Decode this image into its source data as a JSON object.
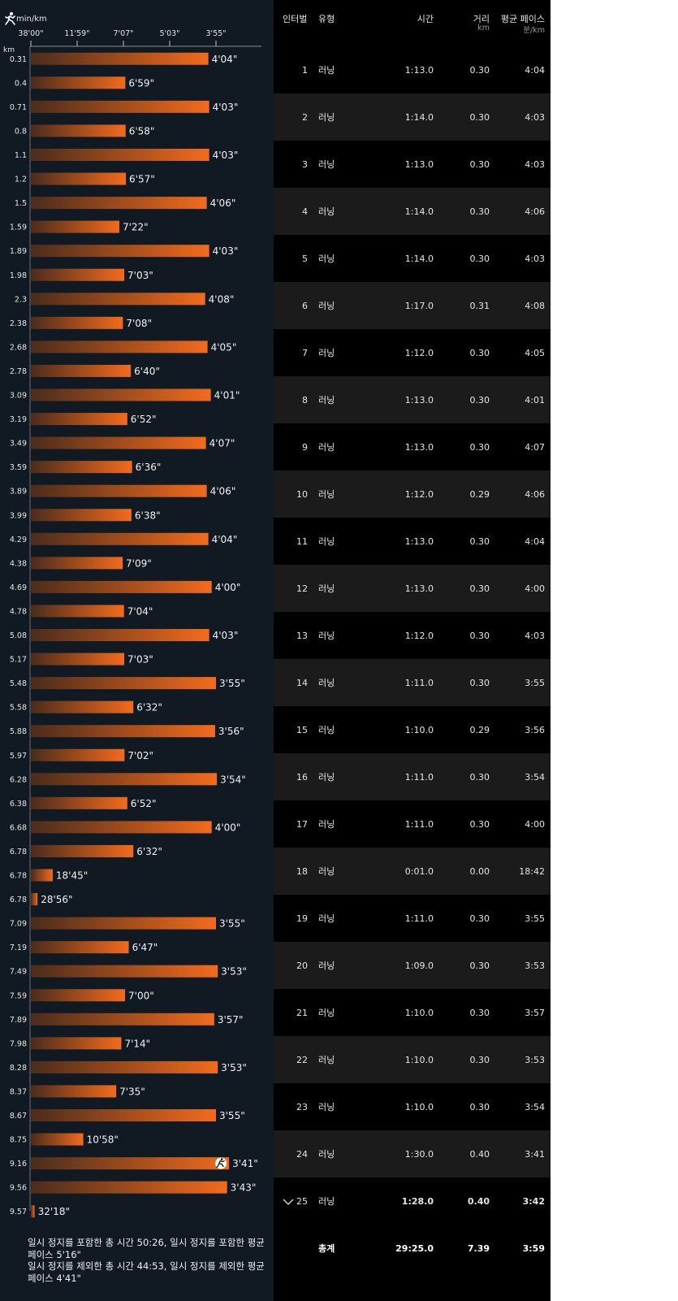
{
  "chart_data": {
    "type": "bar",
    "orientation": "horizontal",
    "unit_label": "min/km",
    "category_axis_label": "km",
    "x_ticks": [
      "38'00\"",
      "11'59\"",
      "7'07\"",
      "5'03\"",
      "3'55\""
    ],
    "categories": [
      "0.31",
      "0.4",
      "0.71",
      "0.8",
      "1.1",
      "1.2",
      "1.5",
      "1.59",
      "1.89",
      "1.98",
      "2.3",
      "2.38",
      "2.68",
      "2.78",
      "3.09",
      "3.19",
      "3.49",
      "3.59",
      "3.89",
      "3.99",
      "4.29",
      "4.38",
      "4.69",
      "4.78",
      "5.08",
      "5.17",
      "5.48",
      "5.58",
      "5.88",
      "5.97",
      "6.28",
      "6.38",
      "6.68",
      "6.78",
      "6.78",
      "6.78",
      "7.09",
      "7.19",
      "7.49",
      "7.59",
      "7.89",
      "7.98",
      "8.28",
      "8.37",
      "8.67",
      "8.75",
      "9.16",
      "9.56",
      "9.57"
    ],
    "labels": [
      "4'04\"",
      "6'59\"",
      "4'03\"",
      "6'58\"",
      "4'03\"",
      "6'57\"",
      "4'06\"",
      "7'22\"",
      "4'03\"",
      "7'03\"",
      "4'08\"",
      "7'08\"",
      "4'05\"",
      "6'40\"",
      "4'01\"",
      "6'52\"",
      "4'07\"",
      "6'36\"",
      "4'06\"",
      "6'38\"",
      "4'04\"",
      "7'09\"",
      "4'00\"",
      "7'04\"",
      "4'03\"",
      "7'03\"",
      "3'55\"",
      "6'32\"",
      "3'56\"",
      "7'02\"",
      "3'54\"",
      "6'52\"",
      "4'00\"",
      "6'32\"",
      "18'45\"",
      "28'56\"",
      "3'55\"",
      "6'47\"",
      "3'53\"",
      "7'00\"",
      "3'57\"",
      "7'14\"",
      "3'53\"",
      "7'35\"",
      "3'55\"",
      "10'58\"",
      "3'41\"",
      "3'43\"",
      "32'18\""
    ],
    "values_sec_per_km": [
      244,
      419,
      243,
      418,
      243,
      417,
      246,
      442,
      243,
      423,
      248,
      428,
      245,
      400,
      241,
      412,
      247,
      396,
      246,
      398,
      244,
      429,
      240,
      424,
      243,
      423,
      235,
      392,
      236,
      422,
      234,
      412,
      240,
      392,
      1125,
      1736,
      235,
      407,
      233,
      420,
      237,
      434,
      233,
      455,
      235,
      658,
      221,
      223,
      1938
    ],
    "highlight_index": 46
  },
  "icons": {
    "unit": "runner-icon",
    "highlight": "runner-badge-icon",
    "expand": "chevron-down-icon"
  },
  "notes": {
    "line1": "일시 정지를 포함한 총 시간 50:26, 일시 정지를 포함한 평균 페이스 5'16\"",
    "line2": "일시 정지를 제외한 총 시간 44:53, 일시 정지를 제외한 평균 페이스 4'41\""
  },
  "table": {
    "headers": {
      "interval": "인터벌",
      "type": "유형",
      "time": "시간",
      "distance": "거리",
      "distance_unit": "km",
      "pace": "평균 페이스",
      "pace_unit": "분/km"
    },
    "rows": [
      {
        "interval": "1",
        "type": "러닝",
        "time": "1:13.0",
        "distance": "0.30",
        "pace": "4:04"
      },
      {
        "interval": "2",
        "type": "러닝",
        "time": "1:14.0",
        "distance": "0.30",
        "pace": "4:03"
      },
      {
        "interval": "3",
        "type": "러닝",
        "time": "1:13.0",
        "distance": "0.30",
        "pace": "4:03"
      },
      {
        "interval": "4",
        "type": "러닝",
        "time": "1:14.0",
        "distance": "0.30",
        "pace": "4:06"
      },
      {
        "interval": "5",
        "type": "러닝",
        "time": "1:14.0",
        "distance": "0.30",
        "pace": "4:03"
      },
      {
        "interval": "6",
        "type": "러닝",
        "time": "1:17.0",
        "distance": "0.31",
        "pace": "4:08"
      },
      {
        "interval": "7",
        "type": "러닝",
        "time": "1:12.0",
        "distance": "0.30",
        "pace": "4:05"
      },
      {
        "interval": "8",
        "type": "러닝",
        "time": "1:13.0",
        "distance": "0.30",
        "pace": "4:01"
      },
      {
        "interval": "9",
        "type": "러닝",
        "time": "1:13.0",
        "distance": "0.30",
        "pace": "4:07"
      },
      {
        "interval": "10",
        "type": "러닝",
        "time": "1:12.0",
        "distance": "0.29",
        "pace": "4:06"
      },
      {
        "interval": "11",
        "type": "러닝",
        "time": "1:13.0",
        "distance": "0.30",
        "pace": "4:04"
      },
      {
        "interval": "12",
        "type": "러닝",
        "time": "1:13.0",
        "distance": "0.30",
        "pace": "4:00"
      },
      {
        "interval": "13",
        "type": "러닝",
        "time": "1:12.0",
        "distance": "0.30",
        "pace": "4:03"
      },
      {
        "interval": "14",
        "type": "러닝",
        "time": "1:11.0",
        "distance": "0.30",
        "pace": "3:55"
      },
      {
        "interval": "15",
        "type": "러닝",
        "time": "1:10.0",
        "distance": "0.29",
        "pace": "3:56"
      },
      {
        "interval": "16",
        "type": "러닝",
        "time": "1:11.0",
        "distance": "0.30",
        "pace": "3:54"
      },
      {
        "interval": "17",
        "type": "러닝",
        "time": "1:11.0",
        "distance": "0.30",
        "pace": "4:00"
      },
      {
        "interval": "18",
        "type": "러닝",
        "time": "0:01.0",
        "distance": "0.00",
        "pace": "18:42"
      },
      {
        "interval": "19",
        "type": "러닝",
        "time": "1:11.0",
        "distance": "0.30",
        "pace": "3:55"
      },
      {
        "interval": "20",
        "type": "러닝",
        "time": "1:09.0",
        "distance": "0.30",
        "pace": "3:53"
      },
      {
        "interval": "21",
        "type": "러닝",
        "time": "1:10.0",
        "distance": "0.30",
        "pace": "3:57"
      },
      {
        "interval": "22",
        "type": "러닝",
        "time": "1:10.0",
        "distance": "0.30",
        "pace": "3:53"
      },
      {
        "interval": "23",
        "type": "러닝",
        "time": "1:10.0",
        "distance": "0.30",
        "pace": "3:54"
      },
      {
        "interval": "24",
        "type": "러닝",
        "time": "1:30.0",
        "distance": "0.40",
        "pace": "3:41"
      },
      {
        "interval": "25",
        "type": "러닝",
        "time": "1:28.0",
        "distance": "0.40",
        "pace": "3:42"
      }
    ],
    "total": {
      "label": "총계",
      "time": "29:25.0",
      "distance": "7.39",
      "pace": "3:59"
    }
  },
  "colors": {
    "bar_start": "#4a2c1c",
    "bar_end": "#f26b1d",
    "chart_bg": "#111a22",
    "table_bg": "#000000",
    "row_alt": "#1b1b1b"
  }
}
